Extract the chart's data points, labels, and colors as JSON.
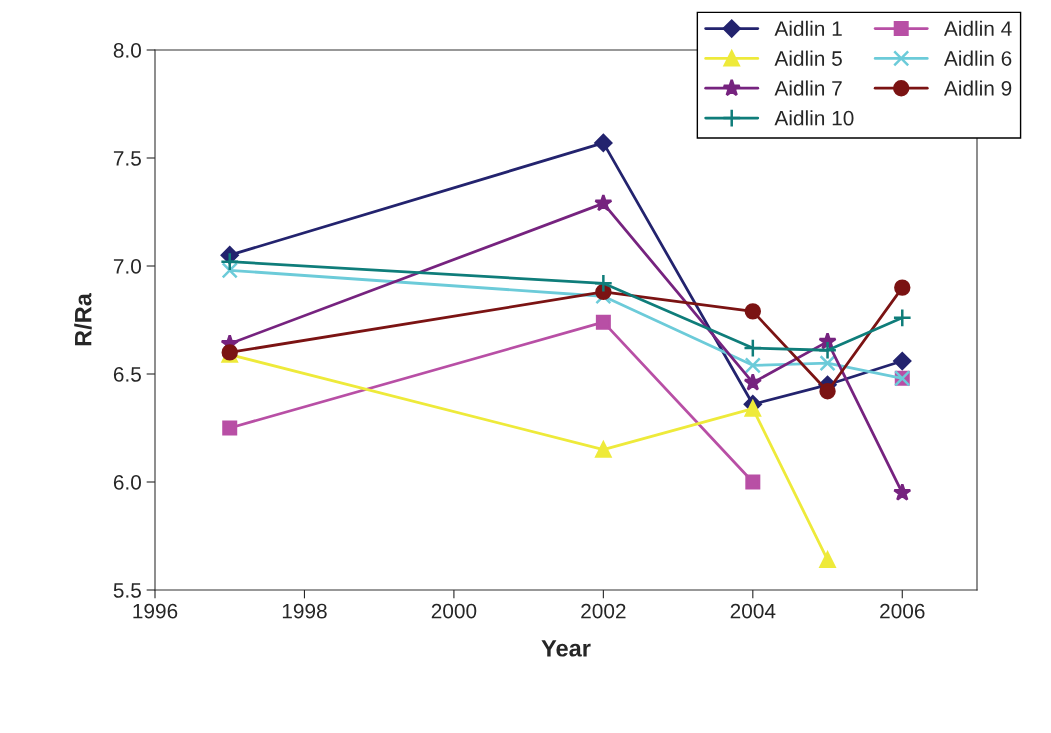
{
  "chart_data": {
    "type": "line",
    "xlabel": "Year",
    "ylabel": "R/Ra",
    "x": [
      1997,
      2002,
      2004,
      2005,
      2006
    ],
    "xlim": [
      1996,
      2007
    ],
    "xticks": [
      1996,
      1998,
      2000,
      2002,
      2004,
      2006
    ],
    "ylim": [
      5.5,
      8.0
    ],
    "yticks": [
      {
        "value": 5.5,
        "label": "5.5"
      },
      {
        "value": 6.0,
        "label": "6.0"
      },
      {
        "value": 6.5,
        "label": "6.5"
      },
      {
        "value": 7.0,
        "label": "7.0"
      },
      {
        "value": 7.5,
        "label": "7.5"
      },
      {
        "value": 8.0,
        "label": "8.0"
      }
    ],
    "grid": false,
    "legend": "top right",
    "line_style": "solid",
    "series": [
      {
        "name": "Aidlin 1",
        "color": "#23236e",
        "marker": "diamond",
        "values": [
          7.05,
          7.57,
          6.36,
          6.45,
          6.56
        ]
      },
      {
        "name": "Aidlin 4",
        "color": "#b84fa5",
        "marker": "square",
        "values": [
          6.25,
          6.74,
          6.0,
          null,
          6.48
        ]
      },
      {
        "name": "Aidlin 5",
        "color": "#eeea3a",
        "marker": "triangle",
        "values": [
          6.59,
          6.15,
          6.34,
          5.64,
          null
        ]
      },
      {
        "name": "Aidlin 6",
        "color": "#6ccbd9",
        "marker": "cross",
        "values": [
          6.98,
          6.86,
          6.54,
          6.55,
          6.48
        ]
      },
      {
        "name": "Aidlin 7",
        "color": "#76237f",
        "marker": "star",
        "values": [
          6.64,
          7.29,
          6.46,
          6.65,
          5.95
        ]
      },
      {
        "name": "Aidlin 9",
        "color": "#7b1313",
        "marker": "circle",
        "values": [
          6.6,
          6.88,
          6.79,
          6.42,
          6.9
        ]
      },
      {
        "name": "Aidlin 10",
        "color": "#0f7d7a",
        "marker": "plus",
        "values": [
          7.02,
          6.92,
          6.62,
          6.61,
          6.76
        ]
      }
    ]
  }
}
